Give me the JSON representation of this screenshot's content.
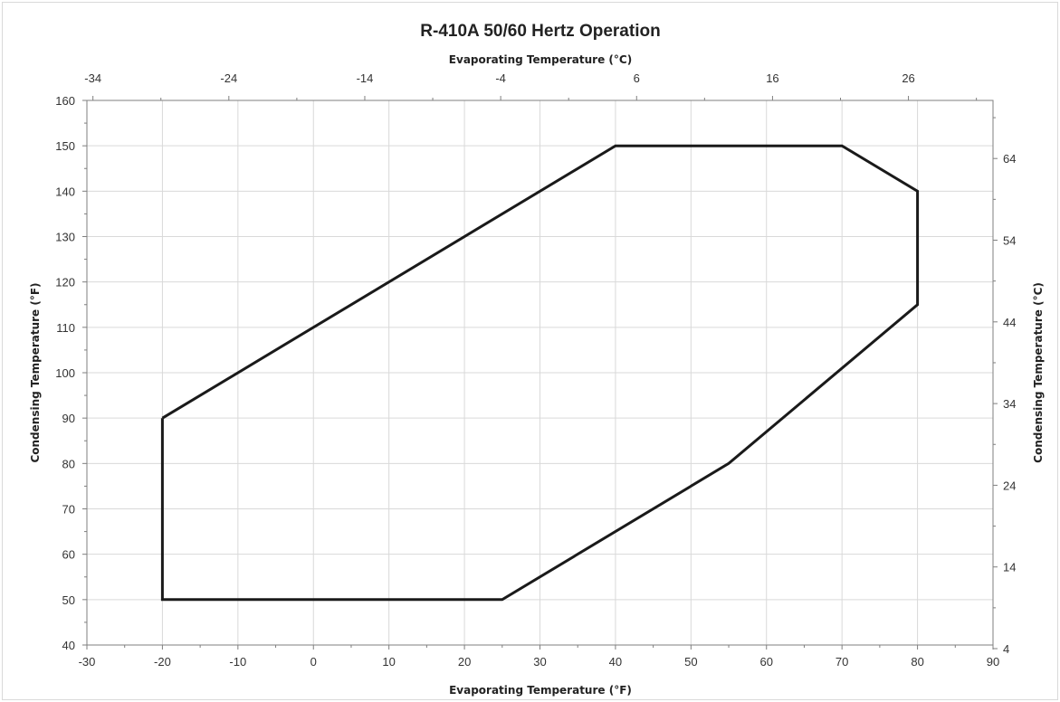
{
  "chart_data": {
    "type": "line",
    "title": "R-410A 50/60 Hertz Operation",
    "xlabel": "Evaporating Temperature (°F)",
    "ylabel": "Condensing Temperature (°F)",
    "x2label": "Evaporating Temperature (°C)",
    "y2label": "Condensing Temperature (°C)",
    "xlim": [
      -30,
      90
    ],
    "ylim": [
      40,
      160
    ],
    "x_ticks": [
      -30,
      -20,
      -10,
      0,
      10,
      20,
      30,
      40,
      50,
      60,
      70,
      80,
      90
    ],
    "y_ticks": [
      40,
      50,
      60,
      70,
      80,
      90,
      100,
      110,
      120,
      130,
      140,
      150,
      160
    ],
    "x2_ticks": [
      -34,
      -24,
      -14,
      -4,
      6,
      16,
      26
    ],
    "y2_ticks": [
      4,
      14,
      24,
      34,
      44,
      54,
      64
    ],
    "grid": true,
    "series": [
      {
        "color": "#1a1a1a",
        "x": [
          -20,
          40,
          70,
          80,
          80,
          55,
          25,
          -20,
          -20
        ],
        "y": [
          90,
          150,
          150,
          140,
          115,
          80,
          50,
          50,
          90
        ]
      }
    ]
  }
}
